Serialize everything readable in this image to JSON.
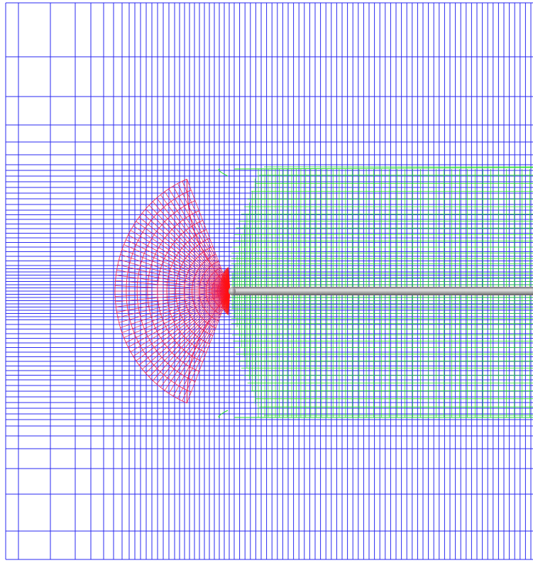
{
  "scene": {
    "background_color": "#ffffff",
    "background_grid_color": "#2a2af0",
    "wake_grid_color": "#22e022",
    "nose_grid_color": "#f02050",
    "nose_tip_color": "#ff1010",
    "body_color": "#9a9a9a",
    "body_highlight_color": "#e8e8e8",
    "overlapping_grids": [
      "background-cartesian-grid",
      "wake-grid",
      "nose-cap-grid"
    ],
    "body_shape": "slender cylinder"
  }
}
